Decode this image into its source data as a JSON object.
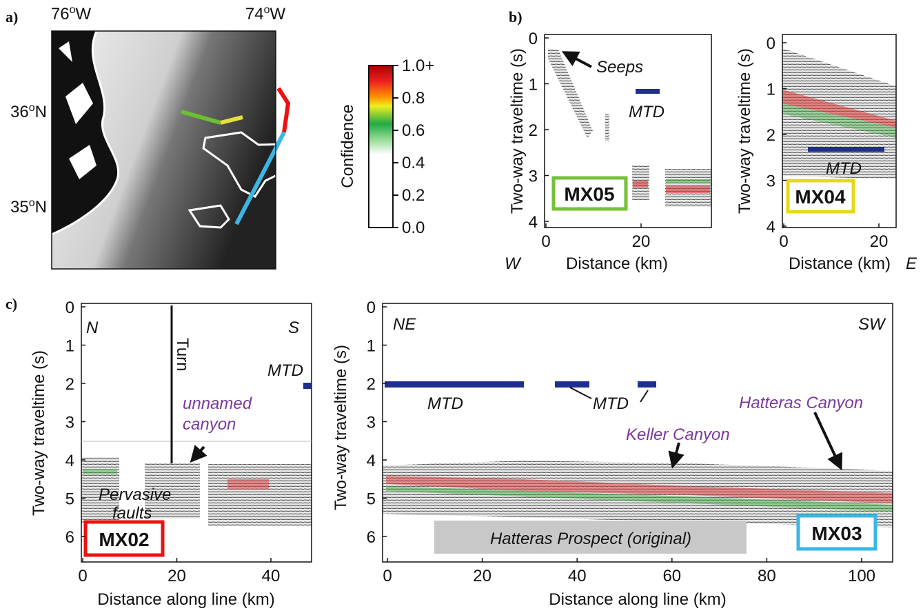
{
  "panel_a": {
    "label": "a)",
    "lon_labels": [
      {
        "deg": "76",
        "sup": "o",
        "hemi": "W"
      },
      {
        "deg": "74",
        "sup": "o",
        "hemi": "W"
      }
    ],
    "lat_labels": [
      {
        "deg": "36",
        "sup": "o",
        "hemi": "N"
      },
      {
        "deg": "35",
        "sup": "o",
        "hemi": "N"
      }
    ],
    "colorbar": {
      "title": "Confidence",
      "ticks": [
        "1.0+",
        "0.8",
        "0.6",
        "0.4",
        "0.2",
        "0.0"
      ]
    }
  },
  "panel_b": {
    "label": "b)",
    "west": "W",
    "east": "E",
    "mx05": {
      "y_label": "Two-way traveltime (s)",
      "x_label": "Distance (km)",
      "yticks": [
        "0",
        "1",
        "2",
        "3",
        "4"
      ],
      "xticks": [
        "0",
        "20"
      ],
      "seeps": "Seeps",
      "mtd": "MTD",
      "line": "MX05"
    },
    "mx04": {
      "y_label": "Two-way traveltime (s)",
      "x_label": "Distance (km)",
      "yticks": [
        "0",
        "1",
        "2",
        "3",
        "4"
      ],
      "xticks": [
        "0",
        "20"
      ],
      "mtd": "MTD",
      "line": "MX04"
    }
  },
  "panel_c": {
    "label": "c)",
    "mx02": {
      "y_label": "Two-way traveltime (s)",
      "x_label": "Distance along line (km)",
      "yticks": [
        "0",
        "1",
        "2",
        "3",
        "4",
        "5",
        "6"
      ],
      "xticks": [
        "0",
        "20",
        "40"
      ],
      "north": "N",
      "south": "S",
      "turn": "Turn",
      "mtd": "MTD",
      "canyon": [
        "unnamed",
        "canyon"
      ],
      "faults": [
        "Pervasive",
        "faults"
      ],
      "line": "MX02"
    },
    "mx03": {
      "y_label": "Two-way traveltime (s)",
      "x_label": "Distance along line (km)",
      "yticks": [
        "0",
        "1",
        "2",
        "3",
        "4",
        "5",
        "6"
      ],
      "xticks": [
        "0",
        "20",
        "40",
        "60",
        "80",
        "100"
      ],
      "northeast": "NE",
      "southwest": "SW",
      "mtd": [
        "MTD",
        "MTD"
      ],
      "keller": "Keller Canyon",
      "hatteras": "Hatteras Canyon",
      "prospect": "Hatteras Prospect (original)",
      "line": "MX03"
    }
  }
}
